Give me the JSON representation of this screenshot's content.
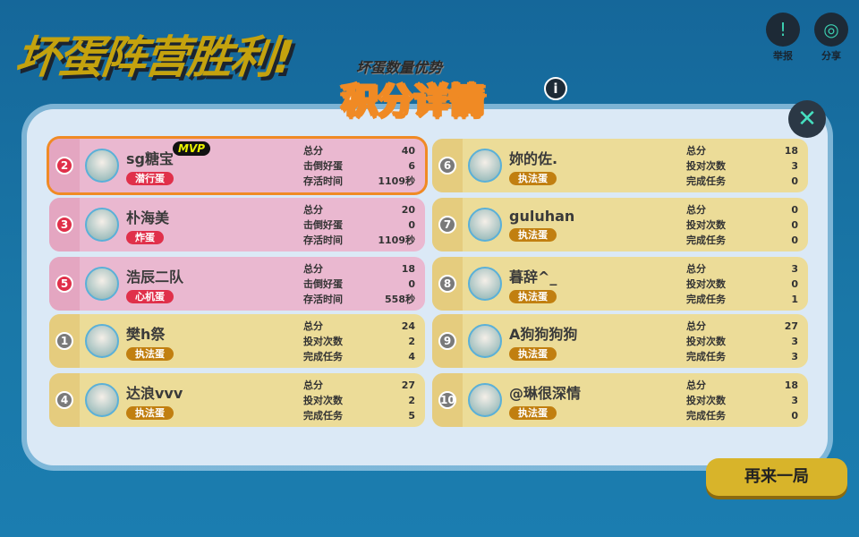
{
  "header": {
    "title": "坏蛋阵营胜利!",
    "subtitle": "坏蛋数量优势",
    "report_label": "举报",
    "share_label": "分享"
  },
  "panel": {
    "title": "积分详情",
    "info_icon": "info-icon",
    "close_icon": "close-icon"
  },
  "players": [
    {
      "rank": "2",
      "name": "sg糖宝",
      "role": "潜行蛋",
      "team": "pink",
      "mvp": "MVP",
      "stats": [
        [
          "总分",
          "40"
        ],
        [
          "击倒好蛋",
          "6"
        ],
        [
          "存活时间",
          "1109秒"
        ]
      ]
    },
    {
      "rank": "3",
      "name": "朴海美",
      "role": "炸蛋",
      "team": "pink",
      "stats": [
        [
          "总分",
          "20"
        ],
        [
          "击倒好蛋",
          "0"
        ],
        [
          "存活时间",
          "1109秒"
        ]
      ]
    },
    {
      "rank": "5",
      "name": "浩辰二队",
      "role": "心机蛋",
      "team": "pink",
      "stats": [
        [
          "总分",
          "18"
        ],
        [
          "击倒好蛋",
          "0"
        ],
        [
          "存活时间",
          "558秒"
        ]
      ]
    },
    {
      "rank": "1",
      "name": "樊h祭",
      "role": "执法蛋",
      "team": "yellow",
      "stats": [
        [
          "总分",
          "24"
        ],
        [
          "投对次数",
          "2"
        ],
        [
          "完成任务",
          "4"
        ]
      ]
    },
    {
      "rank": "4",
      "name": "达浪vvv",
      "role": "执法蛋",
      "team": "yellow",
      "stats": [
        [
          "总分",
          "27"
        ],
        [
          "投对次数",
          "2"
        ],
        [
          "完成任务",
          "5"
        ]
      ]
    },
    {
      "rank": "6",
      "name": "妳的佐.",
      "role": "执法蛋",
      "team": "yellow",
      "stats": [
        [
          "总分",
          "18"
        ],
        [
          "投对次数",
          "3"
        ],
        [
          "完成任务",
          "0"
        ]
      ]
    },
    {
      "rank": "7",
      "name": "guluhan",
      "role": "执法蛋",
      "team": "yellow",
      "stats": [
        [
          "总分",
          "0"
        ],
        [
          "投对次数",
          "0"
        ],
        [
          "完成任务",
          "0"
        ]
      ]
    },
    {
      "rank": "8",
      "name": "暮辞^_",
      "role": "执法蛋",
      "team": "yellow",
      "stats": [
        [
          "总分",
          "3"
        ],
        [
          "投对次数",
          "0"
        ],
        [
          "完成任务",
          "1"
        ]
      ]
    },
    {
      "rank": "9",
      "name": "A狗狗狗狗",
      "role": "执法蛋",
      "team": "yellow",
      "stats": [
        [
          "总分",
          "27"
        ],
        [
          "投对次数",
          "3"
        ],
        [
          "完成任务",
          "3"
        ]
      ]
    },
    {
      "rank": "10",
      "name": "@琳很深情",
      "role": "执法蛋",
      "team": "yellow",
      "stats": [
        [
          "总分",
          "18"
        ],
        [
          "投对次数",
          "3"
        ],
        [
          "完成任务",
          "0"
        ]
      ]
    }
  ],
  "footer": {
    "play_again_label": "再来一局"
  },
  "colors": {
    "pink_team": "#eab8d0",
    "yellow_team": "#ecdc98",
    "accent": "#f08a24",
    "title": "#c4a20e"
  }
}
